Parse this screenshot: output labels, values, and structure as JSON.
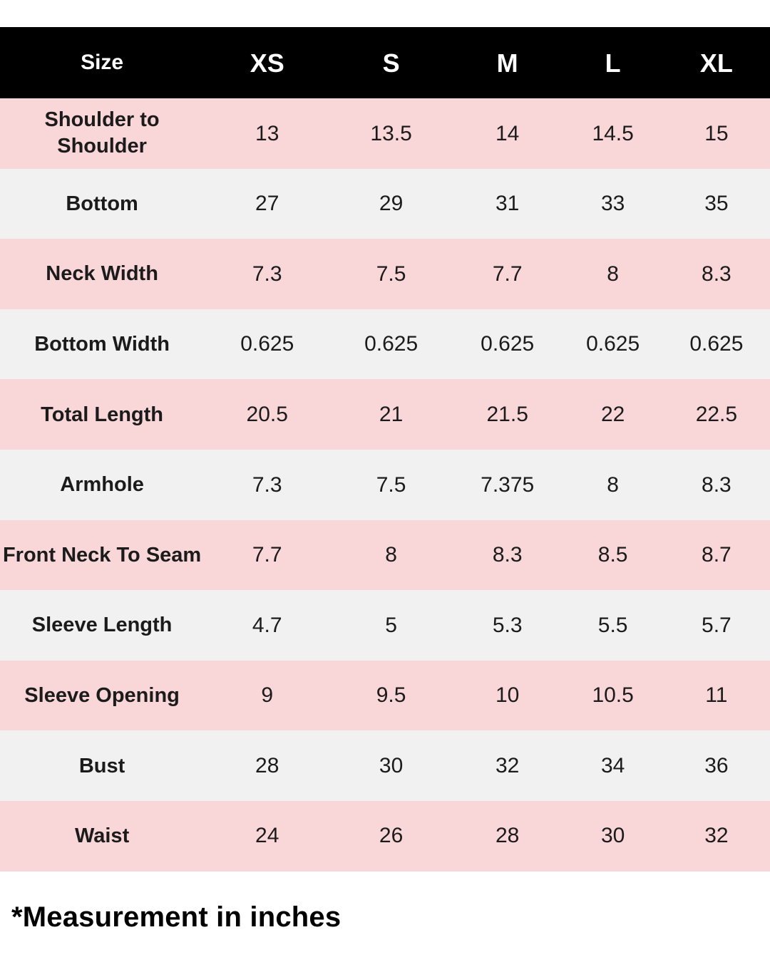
{
  "chart_data": {
    "type": "table",
    "header": {
      "size_label": "Size",
      "sizes": [
        "XS",
        "S",
        "M",
        "L",
        "XL"
      ]
    },
    "rows": [
      {
        "label": "Shoulder to Shoulder",
        "values": [
          "13",
          "13.5",
          "14",
          "14.5",
          "15"
        ]
      },
      {
        "label": "Bottom",
        "values": [
          "27",
          "29",
          "31",
          "33",
          "35"
        ]
      },
      {
        "label": "Neck Width",
        "values": [
          "7.3",
          "7.5",
          "7.7",
          "8",
          "8.3"
        ]
      },
      {
        "label": "Bottom Width",
        "values": [
          "0.625",
          "0.625",
          "0.625",
          "0.625",
          "0.625"
        ]
      },
      {
        "label": "Total Length",
        "values": [
          "20.5",
          "21",
          "21.5",
          "22",
          "22.5"
        ]
      },
      {
        "label": "Armhole",
        "values": [
          "7.3",
          "7.5",
          "7.375",
          "8",
          "8.3"
        ]
      },
      {
        "label": "Front Neck To Seam",
        "values": [
          "7.7",
          "8",
          "8.3",
          "8.5",
          "8.7"
        ]
      },
      {
        "label": "Sleeve Length",
        "values": [
          "4.7",
          "5",
          "5.3",
          "5.5",
          "5.7"
        ]
      },
      {
        "label": "Sleeve Opening",
        "values": [
          "9",
          "9.5",
          "10",
          "10.5",
          "11"
        ]
      },
      {
        "label": "Bust",
        "values": [
          "28",
          "30",
          "32",
          "34",
          "36"
        ]
      },
      {
        "label": "Waist",
        "values": [
          "24",
          "26",
          "28",
          "30",
          "32"
        ]
      }
    ],
    "footnote": "*Measurement in inches"
  },
  "colors": {
    "page_bg": "#ffffff",
    "header_bg": "#000000",
    "header_text": "#ffffff",
    "row_pink": "#f9d6d8",
    "row_gray": "#f2f1f1",
    "body_text": "#1b1b1b"
  }
}
